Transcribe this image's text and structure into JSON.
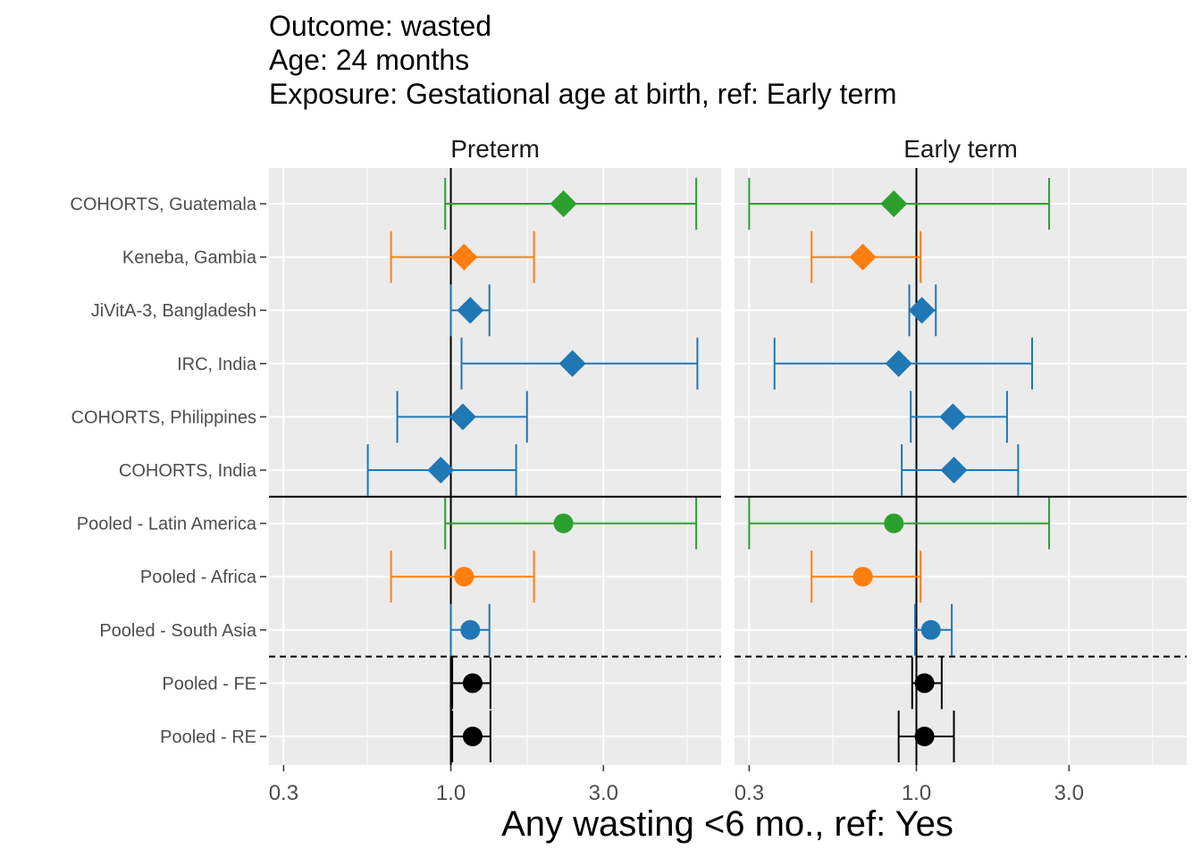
{
  "title": {
    "lines": [
      "Outcome: wasted",
      "Age: 24 months",
      "Exposure: Gestational age at birth, ref: Early term"
    ]
  },
  "colors": {
    "latin_america": "#2ca02c",
    "africa": "#ff7f0e",
    "south_asia": "#1f77b4",
    "pooled_overall": "#000000",
    "panel_background": "#ebebeb",
    "grid": "#ffffff"
  },
  "chart_data": {
    "type": "forest",
    "xlabel": "Any wasting  <6 mo., ref: Yes",
    "x_scale": "log",
    "xlim": [
      0.27,
      7.0
    ],
    "x_ticks": [
      0.3,
      1.0,
      3.0
    ],
    "x_tick_labels": [
      "0.3",
      "1.0",
      "3.0"
    ],
    "reference_line": 1.0,
    "rows": [
      "COHORTS, Guatemala",
      "Keneba, Gambia",
      "JiVitA-3, Bangladesh",
      "IRC, India",
      "COHORTS, Philippines",
      "COHORTS, India",
      "Pooled - Latin America",
      "Pooled - Africa",
      "Pooled - South Asia",
      "Pooled - FE",
      "Pooled - RE"
    ],
    "row_group": [
      "cohort",
      "cohort",
      "cohort",
      "cohort",
      "cohort",
      "cohort",
      "region",
      "region",
      "region",
      "overall",
      "overall"
    ],
    "row_color_key": [
      "latin_america",
      "africa",
      "south_asia",
      "south_asia",
      "south_asia",
      "south_asia",
      "latin_america",
      "africa",
      "south_asia",
      "pooled_overall",
      "pooled_overall"
    ],
    "separators": [
      {
        "after_row": 5,
        "style": "solid"
      },
      {
        "after_row": 8,
        "style": "dashed"
      }
    ],
    "panels": [
      {
        "name": "Preterm",
        "estimates": [
          {
            "est": 2.25,
            "lower": 0.96,
            "upper": 5.85
          },
          {
            "est": 1.1,
            "lower": 0.65,
            "upper": 1.82
          },
          {
            "est": 1.15,
            "lower": 1.0,
            "upper": 1.32
          },
          {
            "est": 2.4,
            "lower": 1.08,
            "upper": 5.9
          },
          {
            "est": 1.09,
            "lower": 0.68,
            "upper": 1.73
          },
          {
            "est": 0.93,
            "lower": 0.55,
            "upper": 1.6
          },
          {
            "est": 2.25,
            "lower": 0.96,
            "upper": 5.85
          },
          {
            "est": 1.1,
            "lower": 0.65,
            "upper": 1.82
          },
          {
            "est": 1.15,
            "lower": 1.0,
            "upper": 1.32
          },
          {
            "est": 1.17,
            "lower": 1.01,
            "upper": 1.33
          },
          {
            "est": 1.17,
            "lower": 1.01,
            "upper": 1.33
          }
        ]
      },
      {
        "name": "Early term",
        "estimates": [
          {
            "est": 0.85,
            "lower": 0.3,
            "upper": 2.6
          },
          {
            "est": 0.68,
            "lower": 0.47,
            "upper": 1.03
          },
          {
            "est": 1.04,
            "lower": 0.95,
            "upper": 1.15
          },
          {
            "est": 0.88,
            "lower": 0.36,
            "upper": 2.3
          },
          {
            "est": 1.3,
            "lower": 0.96,
            "upper": 1.92
          },
          {
            "est": 1.31,
            "lower": 0.9,
            "upper": 2.08
          },
          {
            "est": 0.85,
            "lower": 0.3,
            "upper": 2.6
          },
          {
            "est": 0.68,
            "lower": 0.47,
            "upper": 1.03
          },
          {
            "est": 1.11,
            "lower": 0.99,
            "upper": 1.29
          },
          {
            "est": 1.06,
            "lower": 0.97,
            "upper": 1.2
          },
          {
            "est": 1.06,
            "lower": 0.88,
            "upper": 1.31
          }
        ]
      }
    ]
  }
}
